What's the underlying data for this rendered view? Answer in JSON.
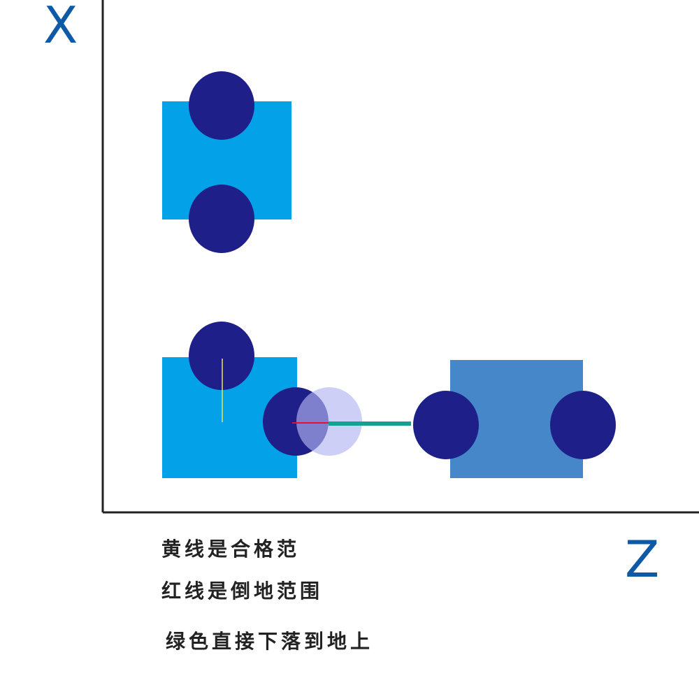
{
  "axes": {
    "vertical_label": "X",
    "horizontal_label": "Z",
    "label_color": "#0e5aa7",
    "line_color": "#222222"
  },
  "notes": [
    "黄线是合格范",
    "红线是倒地范围",
    "绿色直接下落到地上"
  ],
  "colors": {
    "block_light_blue": "#03a1e8",
    "block_steel_blue": "#4587c8",
    "circle_navy": "#1e1f88",
    "ghost_circle": "#b3b6f2",
    "yellow_line": "#e8e85a",
    "red_line": "#e8112c",
    "green_line": "#13a292"
  }
}
